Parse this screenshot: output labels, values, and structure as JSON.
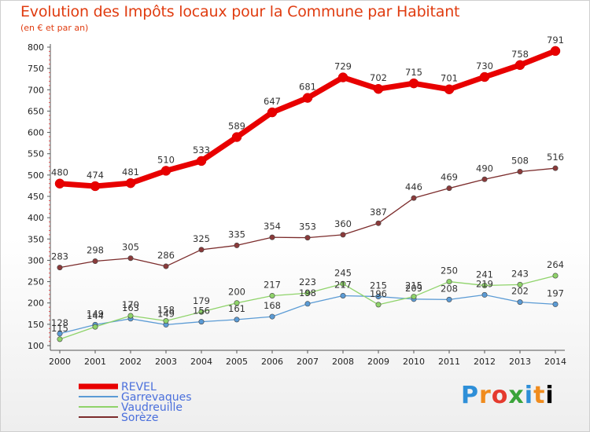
{
  "chart_data": {
    "type": "line",
    "title": "Evolution des Impôts locaux pour la Commune par Habitant",
    "subtitle": "(en € et par an)",
    "xlabel": "",
    "ylabel": "",
    "categories": [
      "2000",
      "2001",
      "2002",
      "2003",
      "2004",
      "2005",
      "2006",
      "2007",
      "2008",
      "2009",
      "2010",
      "2011",
      "2012",
      "2013",
      "2014"
    ],
    "ylim": [
      100,
      800
    ],
    "yticks": [
      100,
      150,
      200,
      250,
      300,
      350,
      400,
      450,
      500,
      550,
      600,
      650,
      700,
      750,
      800
    ],
    "grid": false,
    "legend_position": "bottom-left",
    "series": [
      {
        "name": "REVEL",
        "color": "#e80000",
        "values": [
          480,
          474,
          481,
          510,
          533,
          589,
          647,
          681,
          729,
          702,
          715,
          701,
          730,
          758,
          791
        ]
      },
      {
        "name": "Garrevaques",
        "color": "#5b9bd5",
        "values": [
          128,
          149,
          163,
          149,
          156,
          161,
          168,
          198,
          217,
          215,
          209,
          208,
          219,
          202,
          197
        ]
      },
      {
        "name": "Vaudreuille",
        "color": "#8fd36a",
        "values": [
          115,
          144,
          170,
          158,
          179,
          200,
          217,
          223,
          245,
          196,
          215,
          250,
          241,
          243,
          264
        ]
      },
      {
        "name": "Sorèze",
        "color": "#7b2b2b",
        "values": [
          283,
          298,
          305,
          286,
          325,
          335,
          354,
          353,
          360,
          387,
          446,
          469,
          490,
          508,
          516
        ]
      }
    ]
  },
  "brand": {
    "letters": [
      "P",
      "r",
      "o",
      "x",
      "i",
      "t",
      "i"
    ]
  }
}
